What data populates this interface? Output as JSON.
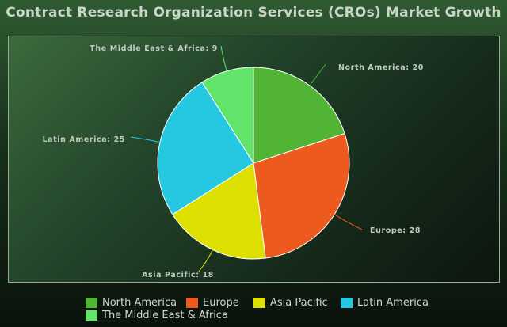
{
  "chart_data": {
    "type": "pie",
    "title": "Contract Research Organization Services (CROs) Market Growth",
    "categories": [
      "North America",
      "Europe",
      "Asia Pacific",
      "Latin America",
      "The Middle East & Africa"
    ],
    "values": [
      20,
      28,
      18,
      25,
      9
    ],
    "colors": [
      "#52b435",
      "#ec5a1e",
      "#dde000",
      "#25c8e0",
      "#62e46b"
    ],
    "labels": [
      "North America: 20",
      "Europe: 28",
      "Asia Pacific: 18",
      "Latin America: 25",
      "The Middle East & Africa: 9"
    ],
    "legend_position": "bottom"
  }
}
